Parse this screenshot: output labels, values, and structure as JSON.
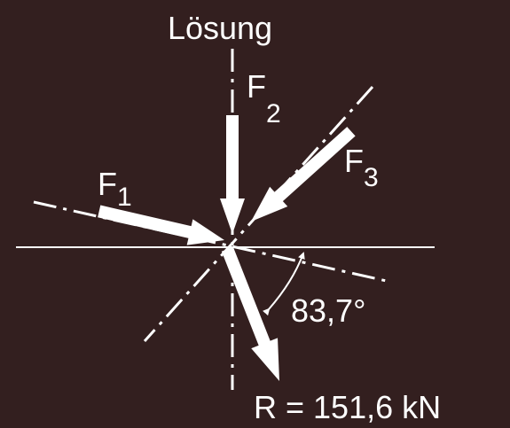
{
  "diagram": {
    "title": "Lösung",
    "forces": [
      {
        "symbol": "F",
        "index": "1"
      },
      {
        "symbol": "F",
        "index": "2"
      },
      {
        "symbol": "F",
        "index": "3"
      }
    ],
    "angle_label": "83,7°",
    "resultant_label": "R = 151,6 kN",
    "colors": {
      "background": "#331f1f",
      "foreground": "#ffffff"
    }
  }
}
